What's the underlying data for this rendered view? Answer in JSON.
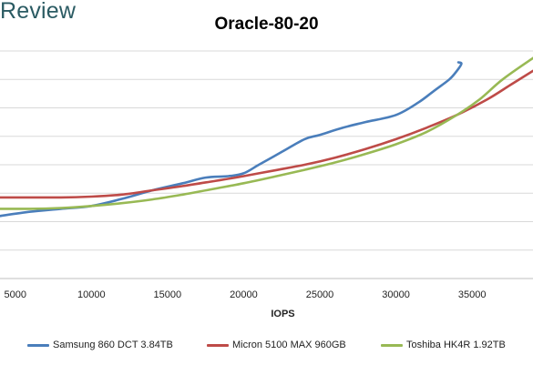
{
  "brand": "Review",
  "chart_data": {
    "type": "line",
    "title": "Oracle-80-20",
    "xlabel": "IOPS",
    "ylabel": "",
    "xlim": [
      4000,
      39000
    ],
    "ylim": [
      0,
      8
    ],
    "x_ticks": [
      5000,
      10000,
      15000,
      20000,
      25000,
      30000,
      35000
    ],
    "grid": "horizontal",
    "legend_position": "bottom",
    "series": [
      {
        "name": "Samsung 860 DCT 3.84TB",
        "color": "#4a7ebb",
        "x": [
          4000,
          6000,
          8000,
          10000,
          12000,
          14000,
          16000,
          17500,
          19000,
          20000,
          21000,
          22500,
          24000,
          25000,
          26500,
          28000,
          30000,
          31500,
          32500,
          33500,
          34000,
          34300,
          34100
        ],
        "y": [
          2.2,
          2.35,
          2.45,
          2.55,
          2.8,
          3.1,
          3.35,
          3.55,
          3.6,
          3.7,
          4.0,
          4.45,
          4.9,
          5.05,
          5.3,
          5.5,
          5.75,
          6.2,
          6.6,
          7.0,
          7.3,
          7.55,
          7.6
        ]
      },
      {
        "name": "Micron 5100 MAX 960GB",
        "color": "#be4b48",
        "x": [
          4000,
          6000,
          8000,
          10000,
          12000,
          14000,
          16000,
          18000,
          20000,
          22000,
          24000,
          26000,
          28000,
          30000,
          32000,
          34000,
          36000,
          37500,
          39000
        ],
        "y": [
          2.85,
          2.85,
          2.85,
          2.88,
          2.95,
          3.1,
          3.25,
          3.42,
          3.6,
          3.8,
          4.0,
          4.25,
          4.55,
          4.9,
          5.3,
          5.75,
          6.3,
          6.8,
          7.3
        ]
      },
      {
        "name": "Toshiba HK4R 1.92TB",
        "color": "#98b954",
        "x": [
          4000,
          6000,
          8000,
          10000,
          12000,
          14000,
          16000,
          18000,
          20000,
          22000,
          24000,
          26000,
          28000,
          30000,
          32000,
          34000,
          35500,
          37000,
          39000
        ],
        "y": [
          2.45,
          2.45,
          2.48,
          2.55,
          2.65,
          2.78,
          2.95,
          3.15,
          3.35,
          3.58,
          3.82,
          4.08,
          4.38,
          4.72,
          5.15,
          5.75,
          6.3,
          7.0,
          7.75
        ]
      }
    ]
  }
}
